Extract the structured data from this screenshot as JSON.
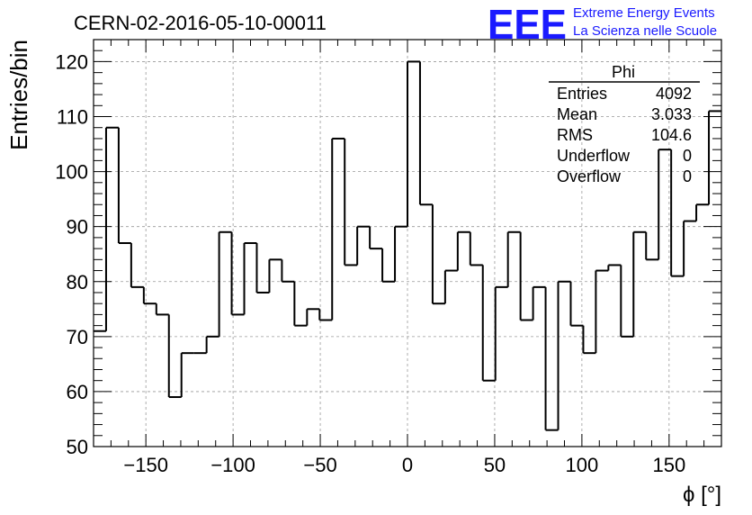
{
  "chart_data": {
    "type": "bar",
    "style": "step-histogram",
    "title": "CERN-02-2016-05-10-00011",
    "xlabel": "ϕ [°]",
    "ylabel": "Entries/bin",
    "xlim": [
      -180,
      180
    ],
    "ylim": [
      50,
      124
    ],
    "bin_width": 7.2,
    "grid": true,
    "xticks": [
      -150,
      -100,
      -50,
      0,
      50,
      100,
      150
    ],
    "xtick_labels": [
      "−150",
      "−100",
      "−50",
      "0",
      "50",
      "100",
      "150"
    ],
    "yticks": [
      50,
      60,
      70,
      80,
      90,
      100,
      110,
      120
    ],
    "values": [
      71,
      108,
      87,
      79,
      76,
      74,
      59,
      67,
      67,
      70,
      89,
      74,
      87,
      78,
      84,
      80,
      72,
      75,
      73,
      106,
      83,
      90,
      86,
      80,
      90,
      120,
      94,
      76,
      82,
      89,
      83,
      62,
      79,
      89,
      73,
      79,
      53,
      80,
      72,
      67,
      82,
      83,
      70,
      89,
      84,
      104,
      81,
      91,
      94,
      111
    ],
    "series": [
      {
        "name": "Phi"
      }
    ]
  },
  "stats_box": {
    "title": "Phi",
    "rows": [
      {
        "label": "Entries",
        "value": "4092"
      },
      {
        "label": "Mean",
        "value": "3.033"
      },
      {
        "label": "RMS",
        "value": "104.6"
      },
      {
        "label": "Underflow",
        "value": "0"
      },
      {
        "label": "Overflow",
        "value": "0"
      }
    ]
  },
  "logo": {
    "mark": "EEE",
    "line1": "Extreme Energy Events",
    "line2": "La Scienza nelle Scuole"
  },
  "colors": {
    "logo": "#1a1aff",
    "line": "#000000",
    "grid": "#999999"
  }
}
